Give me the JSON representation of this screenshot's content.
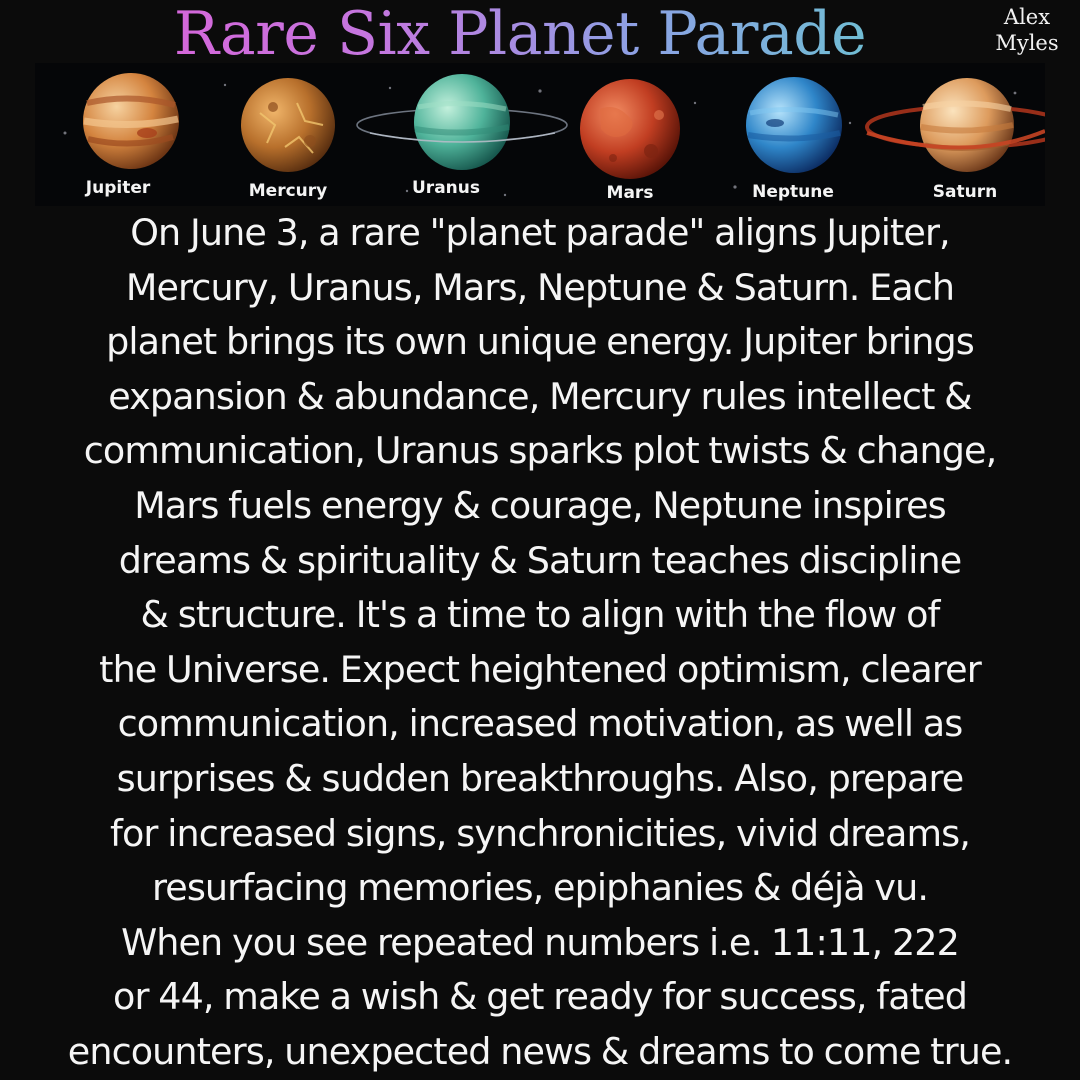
{
  "title": "Rare Six Planet Parade",
  "author_line1": "Alex",
  "author_line2": "Myles",
  "colors": {
    "background": "#0b0b0b",
    "title_gradient_start": "#e25ad6",
    "title_gradient_end": "#56d6c4",
    "text": "#f5f5f5"
  },
  "planets": [
    {
      "label": "Jupiter",
      "icon": "jupiter-icon"
    },
    {
      "label": "Mercury",
      "icon": "mercury-icon"
    },
    {
      "label": "Uranus",
      "icon": "uranus-icon"
    },
    {
      "label": "Mars",
      "icon": "mars-icon"
    },
    {
      "label": "Neptune",
      "icon": "neptune-icon"
    },
    {
      "label": "Saturn",
      "icon": "saturn-icon"
    }
  ],
  "body_lines": [
    "On June 3, a rare \"planet parade\" aligns Jupiter,",
    "Mercury, Uranus, Mars, Neptune & Saturn. Each",
    "planet brings its own unique energy. Jupiter brings",
    "expansion & abundance, Mercury rules intellect &",
    "communication, Uranus sparks plot twists & change,",
    "Mars fuels energy & courage, Neptune inspires",
    "dreams & spirituality & Saturn teaches discipline",
    "& structure. It's a time to align with the flow of",
    "the Universe. Expect heightened optimism, clearer",
    "communication, increased motivation, as well as",
    "surprises & sudden breakthroughs. Also, prepare",
    "for increased signs, synchronicities, vivid dreams,",
    "resurfacing memories, epiphanies & déjà vu.",
    "When you see repeated numbers i.e. 11:11, 222",
    "or 44, make a wish & get ready for success, fated",
    "encounters, unexpected news & dreams to come true."
  ]
}
